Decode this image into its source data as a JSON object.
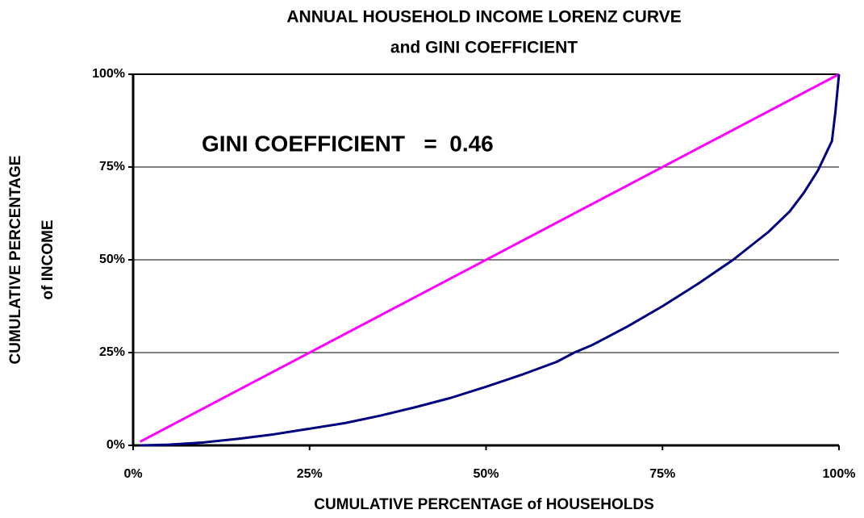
{
  "chart_data": {
    "type": "line",
    "title": [
      "ANNUAL HOUSEHOLD INCOME LORENZ CURVE",
      "and GINI COEFFICIENT"
    ],
    "x_label": "CUMULATIVE PERCENTAGE of HOUSEHOLDS",
    "y_label": [
      "CUMULATIVE PERCENTAGE",
      "of INCOME"
    ],
    "annotation": "GINI COEFFICIENT   =  0.46",
    "xlim": [
      0,
      100
    ],
    "ylim": [
      0,
      100
    ],
    "xticks": [
      {
        "value": 0,
        "label": "0%"
      },
      {
        "value": 25,
        "label": "25%"
      },
      {
        "value": 50,
        "label": "50%"
      },
      {
        "value": 75,
        "label": "75%"
      },
      {
        "value": 100,
        "label": "100%"
      }
    ],
    "yticks": [
      {
        "value": 0,
        "label": "0%"
      },
      {
        "value": 25,
        "label": "25%"
      },
      {
        "value": 50,
        "label": "50%"
      },
      {
        "value": 75,
        "label": "75%"
      },
      {
        "value": 100,
        "label": "100%"
      }
    ],
    "grid": true,
    "series": [
      {
        "color": "#ff00ff",
        "x": [
          1,
          100
        ],
        "values": [
          1,
          100
        ]
      },
      {
        "color": "#000080",
        "x": [
          1,
          5,
          10,
          15,
          20,
          25,
          30,
          35,
          40,
          45,
          50,
          55,
          60,
          62.5,
          65,
          70,
          75,
          80,
          85,
          90,
          93,
          95,
          97,
          98,
          99,
          99.5,
          100
        ],
        "values": [
          0,
          0.2,
          0.8,
          1.8,
          3,
          4.5,
          6,
          8,
          10.3,
          12.8,
          15.8,
          19,
          22.5,
          25,
          27,
          32,
          37.5,
          43.5,
          50,
          57.5,
          63,
          68,
          74,
          78,
          82,
          90,
          100
        ]
      }
    ]
  }
}
